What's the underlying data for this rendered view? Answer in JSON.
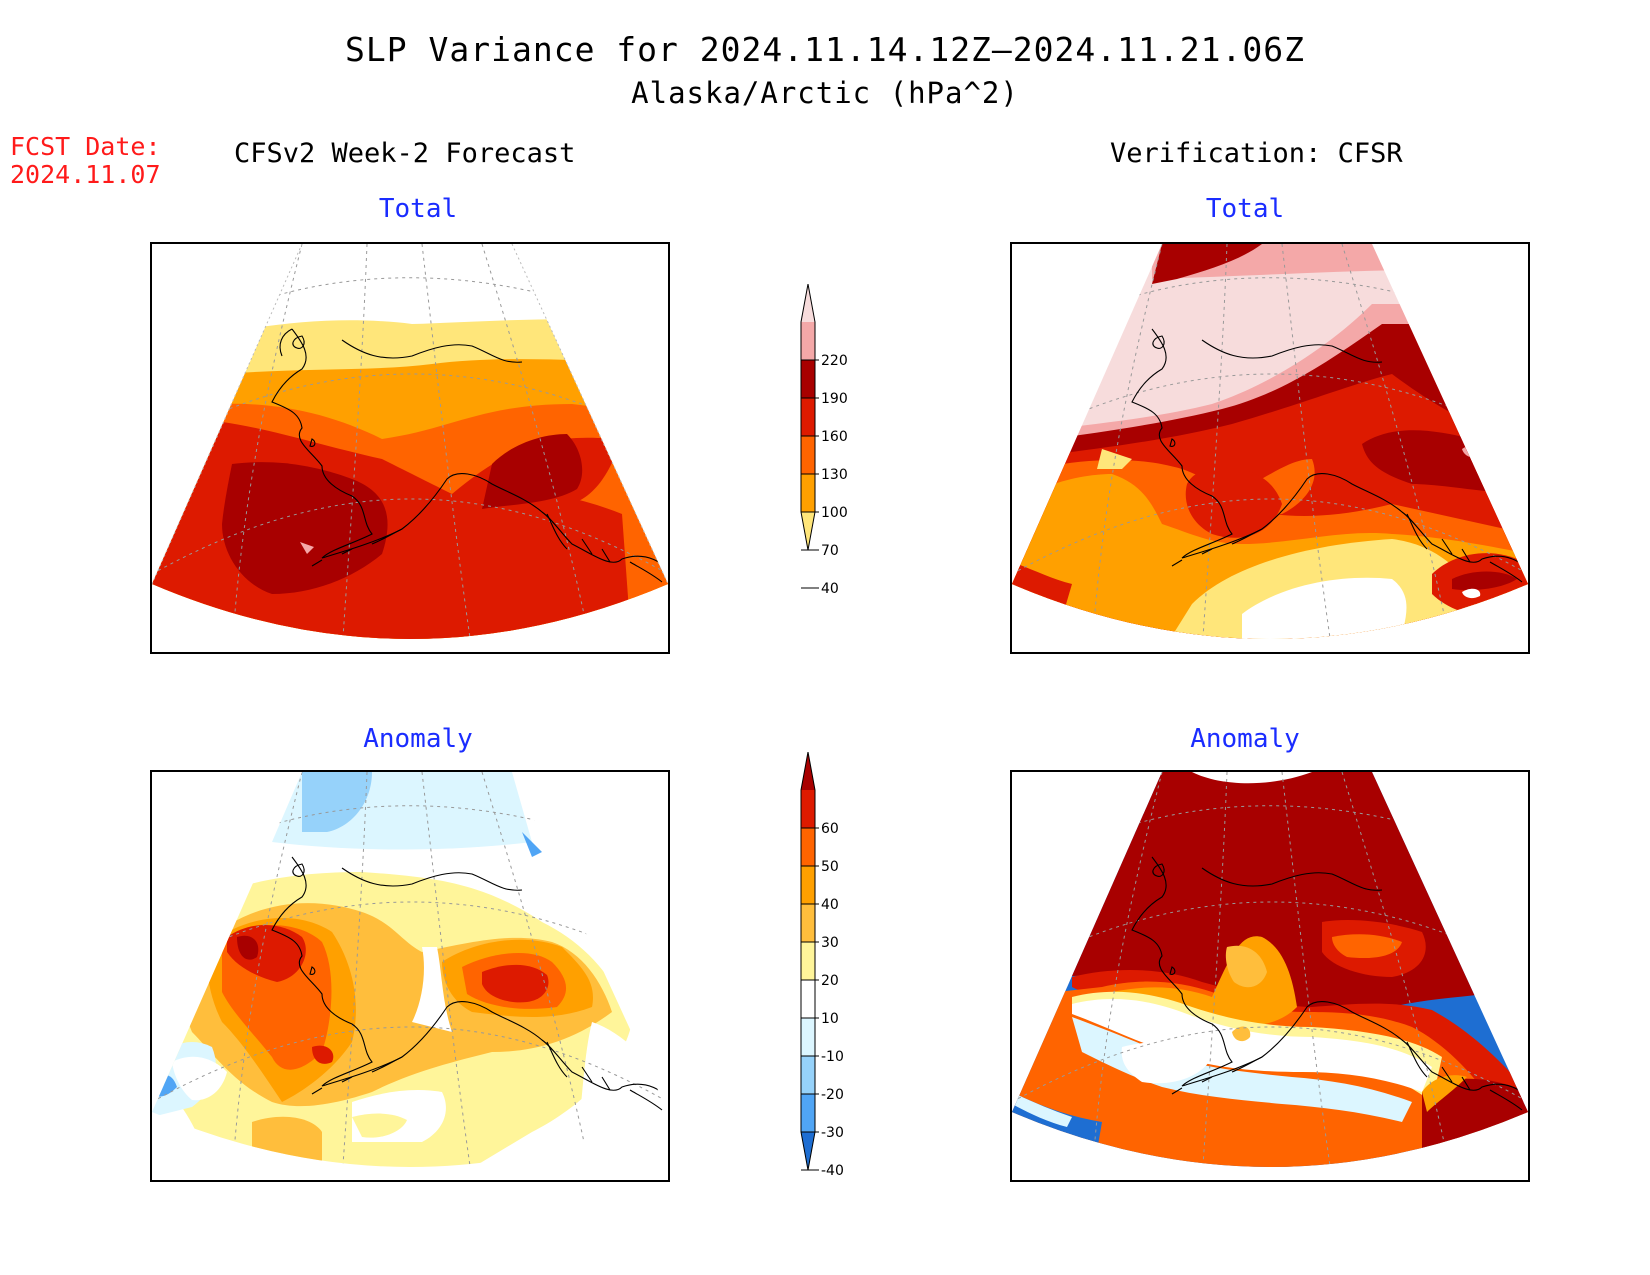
{
  "title": "SLP Variance for 2024.11.14.12Z–2024.11.21.06Z",
  "subtitle": "Alaska/Arctic (hPa^2)",
  "fcst_date": {
    "label": "FCST Date:",
    "value": "2024.11.07"
  },
  "columns": {
    "forecast": "CFSv2 Week-2 Forecast",
    "verification": "Verification: CFSR"
  },
  "panels": {
    "fc_total": "Total",
    "obs_total": "Total",
    "fc_anom": "Anomaly",
    "obs_anom": "Anomaly"
  },
  "colorbar_total": {
    "ticks": [
      "220",
      "190",
      "160",
      "130",
      "100",
      "70",
      "40"
    ],
    "colors": [
      "#f7dcdc",
      "#f4a8a8",
      "#a80000",
      "#dd1a00",
      "#ff6400",
      "#ffa000",
      "#ffe67a"
    ]
  },
  "colorbar_anom": {
    "ticks": [
      "60",
      "50",
      "40",
      "30",
      "20",
      "10",
      "-10",
      "-20",
      "-30",
      "-40"
    ],
    "colors": [
      "#a80000",
      "#dd1a00",
      "#ff6400",
      "#ffa000",
      "#ffbe3c",
      "#fff59a",
      "#ffffff",
      "#dcf6ff",
      "#96d2fa",
      "#50a5f5",
      "#1e6ed2"
    ]
  }
}
